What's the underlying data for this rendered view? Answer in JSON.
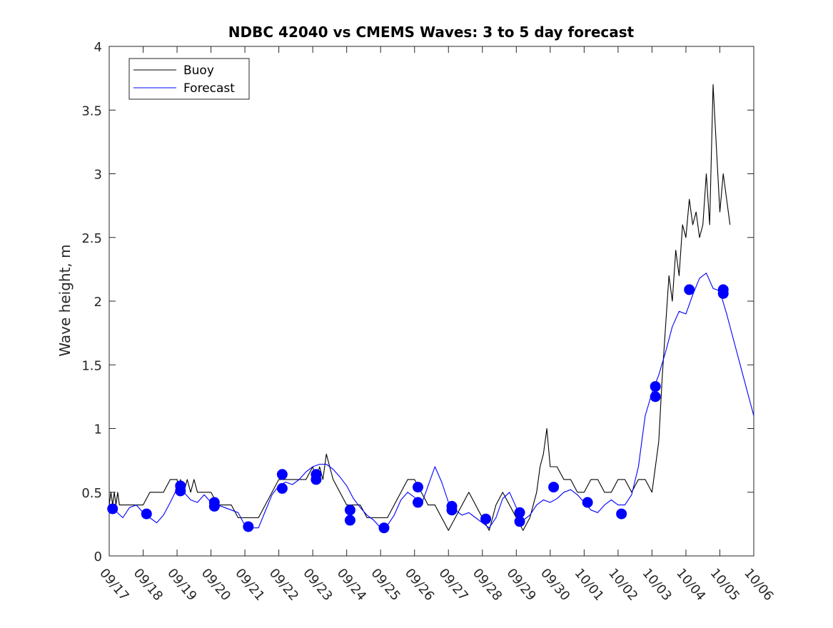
{
  "chart_data": {
    "type": "line",
    "title": "NDBC 42040 vs CMEMS Waves: 3 to 5 day forecast",
    "xlabel": "",
    "ylabel": "Wave height, m",
    "xlim": [
      0,
      19
    ],
    "ylim": [
      0,
      4
    ],
    "x_tick_positions": [
      0,
      1,
      2,
      3,
      4,
      5,
      6,
      7,
      8,
      9,
      10,
      11,
      12,
      13,
      14,
      15,
      16,
      17,
      18,
      19
    ],
    "x_tick_labels": [
      "09/17",
      "09/18",
      "09/19",
      "09/20",
      "09/21",
      "09/22",
      "09/23",
      "09/24",
      "09/25",
      "09/26",
      "09/27",
      "09/28",
      "09/29",
      "09/30",
      "10/01",
      "10/02",
      "10/03",
      "10/04",
      "10/05",
      "10/06"
    ],
    "y_ticks": [
      0,
      0.5,
      1,
      1.5,
      2,
      2.5,
      3,
      3.5,
      4
    ],
    "y_tick_labels": [
      "0",
      "0.5",
      "1",
      "1.5",
      "2",
      "2.5",
      "3",
      "3.5",
      "4"
    ],
    "grid": false,
    "legend_position": "top-left",
    "legend": [
      {
        "label": "Buoy",
        "color": "#000000"
      },
      {
        "label": "Forecast",
        "color": "#0000ff"
      }
    ],
    "colors": {
      "buoy": "#000000",
      "forecast": "#0000ff"
    },
    "series": [
      {
        "name": "Buoy",
        "color": "#000000",
        "x": [
          0.0,
          0.05,
          0.1,
          0.15,
          0.2,
          0.25,
          0.3,
          0.4,
          0.6,
          0.8,
          1.0,
          1.2,
          1.4,
          1.6,
          1.8,
          2.0,
          2.05,
          2.1,
          2.2,
          2.3,
          2.4,
          2.5,
          2.6,
          2.8,
          3.0,
          3.2,
          3.4,
          3.6,
          3.8,
          4.0,
          4.2,
          4.4,
          4.6,
          4.8,
          5.0,
          5.2,
          5.4,
          5.6,
          5.8,
          6.0,
          6.1,
          6.2,
          6.3,
          6.4,
          6.5,
          6.6,
          6.8,
          7.0,
          7.2,
          7.4,
          7.6,
          7.8,
          8.0,
          8.2,
          8.4,
          8.6,
          8.8,
          9.0,
          9.2,
          9.4,
          9.6,
          9.8,
          10.0,
          10.2,
          10.4,
          10.6,
          10.8,
          11.0,
          11.2,
          11.4,
          11.6,
          11.8,
          12.0,
          12.2,
          12.4,
          12.6,
          12.7,
          12.8,
          12.9,
          13.0,
          13.2,
          13.4,
          13.6,
          13.8,
          14.0,
          14.2,
          14.4,
          14.6,
          14.8,
          15.0,
          15.2,
          15.4,
          15.6,
          15.8,
          16.0,
          16.1,
          16.2,
          16.3,
          16.4,
          16.5,
          16.6,
          16.7,
          16.8,
          16.9,
          17.0,
          17.1,
          17.2,
          17.3,
          17.4,
          17.5,
          17.6,
          17.7,
          17.8,
          17.9,
          18.0,
          18.1,
          18.2,
          18.3
        ],
        "y": [
          0.4,
          0.5,
          0.4,
          0.5,
          0.4,
          0.5,
          0.4,
          0.4,
          0.4,
          0.4,
          0.4,
          0.5,
          0.5,
          0.5,
          0.6,
          0.6,
          0.5,
          0.6,
          0.5,
          0.6,
          0.5,
          0.6,
          0.5,
          0.5,
          0.5,
          0.4,
          0.4,
          0.4,
          0.3,
          0.3,
          0.3,
          0.3,
          0.4,
          0.5,
          0.6,
          0.6,
          0.6,
          0.6,
          0.6,
          0.7,
          0.6,
          0.7,
          0.6,
          0.8,
          0.7,
          0.6,
          0.5,
          0.4,
          0.4,
          0.4,
          0.3,
          0.3,
          0.3,
          0.3,
          0.4,
          0.5,
          0.6,
          0.6,
          0.5,
          0.4,
          0.4,
          0.3,
          0.2,
          0.3,
          0.4,
          0.5,
          0.4,
          0.3,
          0.2,
          0.4,
          0.5,
          0.4,
          0.3,
          0.2,
          0.3,
          0.5,
          0.7,
          0.8,
          1.0,
          0.7,
          0.7,
          0.6,
          0.6,
          0.5,
          0.5,
          0.6,
          0.6,
          0.5,
          0.5,
          0.6,
          0.6,
          0.5,
          0.6,
          0.6,
          0.5,
          0.7,
          0.9,
          1.4,
          1.8,
          2.2,
          2.0,
          2.4,
          2.2,
          2.6,
          2.5,
          2.8,
          2.6,
          2.7,
          2.5,
          2.6,
          3.0,
          2.6,
          3.7,
          3.2,
          2.7,
          3.0,
          2.8,
          2.6
        ]
      },
      {
        "name": "Forecast",
        "color": "#0000ff",
        "x": [
          0.0,
          0.2,
          0.4,
          0.6,
          0.8,
          1.0,
          1.2,
          1.4,
          1.6,
          1.8,
          2.0,
          2.2,
          2.4,
          2.6,
          2.8,
          3.0,
          3.2,
          3.4,
          3.6,
          3.8,
          4.0,
          4.2,
          4.4,
          4.6,
          4.8,
          5.0,
          5.2,
          5.4,
          5.6,
          5.8,
          6.0,
          6.2,
          6.4,
          6.6,
          6.8,
          7.0,
          7.2,
          7.4,
          7.6,
          7.8,
          8.0,
          8.2,
          8.4,
          8.6,
          8.8,
          9.0,
          9.2,
          9.4,
          9.6,
          9.8,
          10.0,
          10.2,
          10.4,
          10.6,
          10.8,
          11.0,
          11.2,
          11.4,
          11.6,
          11.8,
          12.0,
          12.2,
          12.4,
          12.6,
          12.8,
          13.0,
          13.2,
          13.4,
          13.6,
          13.8,
          14.0,
          14.2,
          14.4,
          14.6,
          14.8,
          15.0,
          15.2,
          15.4,
          15.6,
          15.8,
          16.0,
          16.2,
          16.4,
          16.6,
          16.8,
          17.0,
          17.2,
          17.4,
          17.6,
          17.8,
          18.0,
          18.2,
          18.4,
          18.6,
          18.8,
          19.0
        ],
        "y": [
          0.37,
          0.35,
          0.3,
          0.38,
          0.4,
          0.34,
          0.3,
          0.26,
          0.32,
          0.42,
          0.53,
          0.5,
          0.44,
          0.42,
          0.48,
          0.42,
          0.4,
          0.38,
          0.36,
          0.34,
          0.24,
          0.22,
          0.22,
          0.35,
          0.48,
          0.55,
          0.58,
          0.56,
          0.6,
          0.66,
          0.7,
          0.72,
          0.72,
          0.68,
          0.62,
          0.55,
          0.45,
          0.38,
          0.32,
          0.28,
          0.22,
          0.24,
          0.32,
          0.44,
          0.5,
          0.46,
          0.4,
          0.55,
          0.7,
          0.58,
          0.42,
          0.36,
          0.32,
          0.34,
          0.3,
          0.26,
          0.22,
          0.3,
          0.45,
          0.5,
          0.38,
          0.28,
          0.32,
          0.4,
          0.44,
          0.42,
          0.45,
          0.5,
          0.52,
          0.48,
          0.42,
          0.36,
          0.34,
          0.4,
          0.44,
          0.4,
          0.4,
          0.48,
          0.7,
          1.1,
          1.28,
          1.42,
          1.6,
          1.8,
          1.92,
          1.9,
          2.05,
          2.18,
          2.22,
          2.1,
          2.08,
          1.9,
          1.7,
          1.5,
          1.3,
          1.1
        ]
      }
    ],
    "markers": [
      {
        "series": "Forecast",
        "x": [
          0.1,
          1.1,
          2.1,
          2.1,
          3.1,
          3.1,
          4.1,
          5.1,
          5.1,
          6.1,
          6.1,
          7.1,
          7.1,
          8.1,
          9.1,
          9.1,
          10.1,
          10.1,
          11.1,
          12.1,
          12.1,
          13.1,
          14.1,
          15.1,
          16.1,
          16.1,
          17.1,
          18.1,
          18.1
        ],
        "y": [
          0.37,
          0.33,
          0.55,
          0.51,
          0.42,
          0.39,
          0.23,
          0.64,
          0.53,
          0.64,
          0.6,
          0.36,
          0.28,
          0.22,
          0.54,
          0.42,
          0.39,
          0.36,
          0.29,
          0.34,
          0.27,
          0.54,
          0.42,
          0.33,
          1.33,
          1.25,
          2.09,
          2.09,
          2.06
        ]
      }
    ]
  }
}
